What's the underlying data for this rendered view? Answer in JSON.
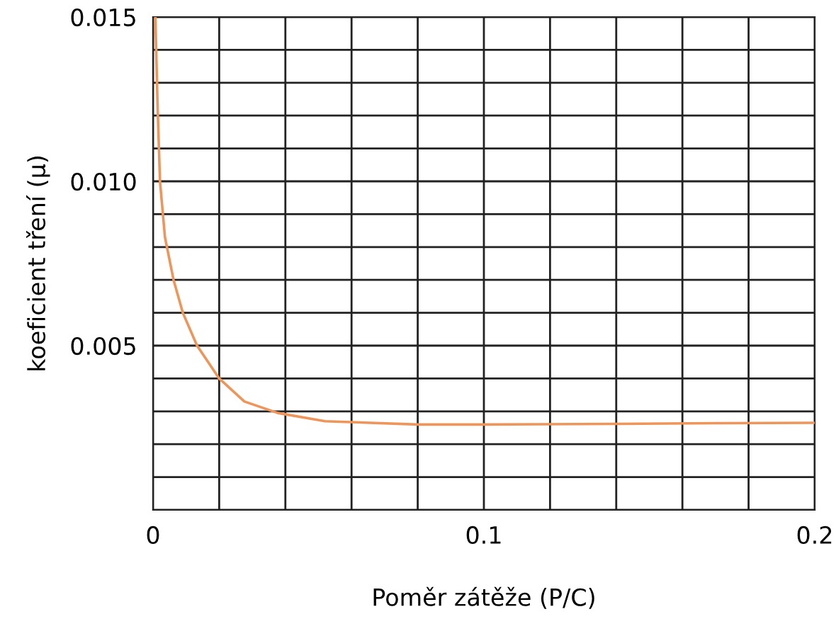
{
  "chart_data": {
    "type": "line",
    "xlabel": "Poměr zátěže (P/C)",
    "ylabel": "koeficient tření (μ)",
    "series": [
      {
        "color": "#f0955a",
        "x": [
          0.0007,
          0.0014,
          0.0021,
          0.0036,
          0.0062,
          0.009,
          0.0133,
          0.02,
          0.0276,
          0.0377,
          0.052,
          0.08,
          0.1,
          0.14,
          0.17,
          0.2
        ],
        "values": [
          0.015,
          0.0122,
          0.01,
          0.0083,
          0.007,
          0.006,
          0.005,
          0.004,
          0.0033,
          0.00295,
          0.0027,
          0.0026,
          0.0026,
          0.00262,
          0.00264,
          0.00265
        ]
      }
    ],
    "xlim": [
      0,
      0.2
    ],
    "ylim": [
      0,
      0.015
    ],
    "xticks": [
      0,
      {
        "value": 0.02,
        "label": null
      },
      {
        "value": 0.04,
        "label": null
      },
      {
        "value": 0.06,
        "label": null
      },
      {
        "value": 0.08,
        "label": null
      },
      0.1,
      {
        "value": 0.12,
        "label": null
      },
      {
        "value": 0.14,
        "label": null
      },
      {
        "value": 0.16,
        "label": null
      },
      {
        "value": 0.18,
        "label": null
      },
      0.2
    ],
    "yticks": [
      {
        "value": 0,
        "label": null
      },
      {
        "value": 0.001,
        "label": null
      },
      {
        "value": 0.002,
        "label": null
      },
      {
        "value": 0.003,
        "label": null
      },
      {
        "value": 0.004,
        "label": null
      },
      0.005,
      {
        "value": 0.006,
        "label": null
      },
      {
        "value": 0.007,
        "label": null
      },
      {
        "value": 0.008,
        "label": null
      },
      {
        "value": 0.009,
        "label": null
      },
      {
        "value": 0.01,
        "label": "0.010"
      },
      {
        "value": 0.011,
        "label": null
      },
      {
        "value": 0.012,
        "label": null
      },
      {
        "value": 0.013,
        "label": null
      },
      {
        "value": 0.014,
        "label": null
      },
      0.015
    ],
    "grid": true,
    "marker": "none",
    "line_style": "solid"
  }
}
